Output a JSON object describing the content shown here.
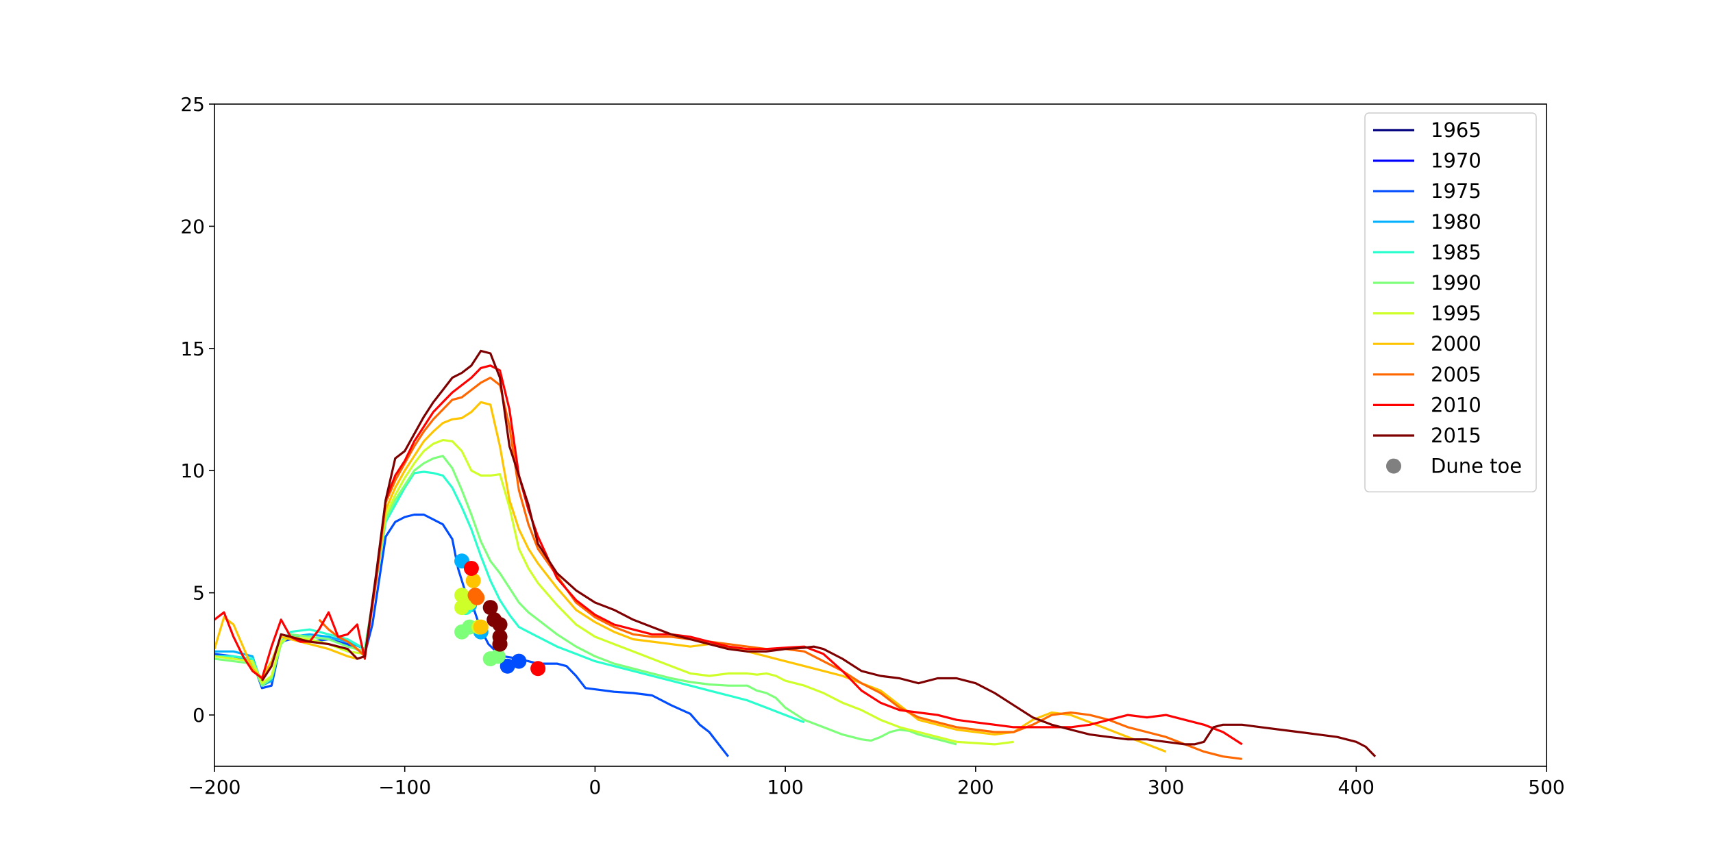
{
  "chart_data": {
    "type": "line",
    "title": "",
    "xlabel": "",
    "ylabel": "",
    "xlim": [
      -200,
      500
    ],
    "ylim": [
      -2.1,
      25
    ],
    "xticks": [
      -200,
      -100,
      0,
      100,
      200,
      300,
      400,
      500
    ],
    "yticks": [
      0,
      5,
      10,
      15,
      20,
      25
    ],
    "grid": false,
    "legend_position": "top-right",
    "legend_marker_label": "Dune toe",
    "legend_marker_color": "#808080",
    "series": [
      {
        "name": "1965",
        "color": "#00007f",
        "x": [],
        "y": []
      },
      {
        "name": "1970",
        "color": "#0000ff",
        "x": [],
        "y": []
      },
      {
        "name": "1975",
        "color": "#004cff",
        "x": [
          -200,
          -190,
          -180,
          -175,
          -170,
          -165,
          -160,
          -150,
          -140,
          -130,
          -121,
          -117,
          -110,
          -105,
          -100,
          -95,
          -90,
          -85,
          -80,
          -75,
          -72,
          -68,
          -64,
          -60,
          -56,
          -52,
          -48,
          -44,
          -40,
          -35,
          -30,
          -20,
          -15,
          -10,
          -5,
          0,
          10,
          20,
          30,
          40,
          50,
          55,
          60,
          65,
          70
        ],
        "y": [
          2.5,
          2.4,
          2.2,
          1.1,
          1.2,
          3.0,
          3.1,
          3.0,
          3.1,
          2.9,
          2.5,
          3.7,
          7.3,
          7.9,
          8.1,
          8.2,
          8.2,
          8.0,
          7.8,
          7.2,
          6.0,
          5.0,
          4.4,
          3.5,
          2.9,
          2.6,
          2.4,
          2.35,
          2.3,
          2.2,
          2.1,
          2.1,
          2.0,
          1.6,
          1.1,
          1.05,
          0.95,
          0.9,
          0.8,
          0.4,
          0.05,
          -0.4,
          -0.7,
          -1.2,
          -1.7
        ],
        "toe": [
          [
            -46,
            2.0
          ],
          [
            -40,
            2.2
          ]
        ]
      },
      {
        "name": "1980",
        "color": "#00b0ff",
        "x": [
          -200,
          -190,
          -180,
          -175,
          -170,
          -165,
          -160,
          -150,
          -140,
          -130,
          -121
        ],
        "y": [
          2.6,
          2.6,
          2.4,
          1.2,
          1.4,
          3.0,
          3.2,
          3.3,
          3.2,
          3.0,
          2.7
        ],
        "toe": [
          [
            -70,
            6.3
          ],
          [
            -60,
            3.4
          ],
          [
            -66,
            4.5
          ]
        ]
      },
      {
        "name": "1985",
        "color": "#29ffce",
        "x": [
          -200,
          -190,
          -180,
          -175,
          -170,
          -165,
          -160,
          -150,
          -140,
          -130,
          -121,
          -115,
          -110,
          -105,
          -100,
          -95,
          -90,
          -85,
          -80,
          -75,
          -70,
          -65,
          -60,
          -55,
          -50,
          -45,
          -40,
          -30,
          -20,
          -10,
          0,
          10,
          20,
          30,
          40,
          50,
          60,
          70,
          80,
          90,
          100,
          110
        ],
        "y": [
          2.4,
          2.4,
          2.3,
          1.3,
          1.5,
          3.0,
          3.4,
          3.5,
          3.3,
          3.1,
          2.7,
          5.5,
          7.9,
          8.6,
          9.3,
          9.9,
          9.95,
          9.9,
          9.8,
          9.3,
          8.5,
          7.6,
          6.5,
          5.5,
          4.7,
          4.1,
          3.6,
          3.2,
          2.8,
          2.5,
          2.2,
          2.0,
          1.8,
          1.6,
          1.4,
          1.2,
          1.0,
          0.8,
          0.6,
          0.3,
          0.0,
          -0.3
        ],
        "toe": [
          [
            -68,
            4.4
          ]
        ]
      },
      {
        "name": "1990",
        "color": "#7dff7a",
        "x": [
          -200,
          -190,
          -180,
          -175,
          -170,
          -165,
          -160,
          -150,
          -140,
          -130,
          -121,
          -115,
          -110,
          -105,
          -100,
          -95,
          -90,
          -85,
          -80,
          -75,
          -70,
          -65,
          -60,
          -55,
          -50,
          -45,
          -40,
          -35,
          -30,
          -20,
          -10,
          0,
          10,
          20,
          30,
          40,
          50,
          60,
          70,
          80,
          85,
          90,
          95,
          100,
          110,
          120,
          130,
          140,
          145,
          150,
          155,
          160,
          165,
          170,
          180,
          190
        ],
        "y": [
          2.3,
          2.2,
          2.1,
          1.2,
          1.5,
          2.9,
          3.3,
          3.2,
          3.1,
          2.8,
          2.6,
          5.6,
          8.0,
          8.8,
          9.4,
          10.0,
          10.3,
          10.5,
          10.6,
          10.1,
          9.2,
          8.2,
          7.1,
          6.3,
          5.8,
          5.2,
          4.6,
          4.2,
          3.9,
          3.3,
          2.8,
          2.4,
          2.1,
          1.9,
          1.7,
          1.5,
          1.35,
          1.25,
          1.2,
          1.2,
          1.0,
          0.9,
          0.7,
          0.3,
          -0.2,
          -0.5,
          -0.8,
          -1.0,
          -1.05,
          -0.9,
          -0.7,
          -0.6,
          -0.65,
          -0.8,
          -1.0,
          -1.2
        ],
        "toe": [
          [
            -70,
            3.4
          ],
          [
            -66,
            3.6
          ],
          [
            -55,
            2.3
          ],
          [
            -51,
            2.4
          ]
        ]
      },
      {
        "name": "1995",
        "color": "#ceff29",
        "x": [
          -200,
          -190,
          -180,
          -175,
          -170,
          -165,
          -160,
          -150,
          -140,
          -130,
          -121,
          -115,
          -110,
          -105,
          -100,
          -95,
          -90,
          -85,
          -80,
          -75,
          -70,
          -65,
          -60,
          -55,
          -50,
          -45,
          -40,
          -35,
          -30,
          -20,
          -10,
          0,
          10,
          20,
          30,
          40,
          50,
          60,
          70,
          80,
          85,
          90,
          95,
          100,
          110,
          120,
          130,
          140,
          150,
          160,
          170,
          180,
          190,
          200,
          210,
          220
        ],
        "y": [
          2.4,
          2.3,
          2.2,
          1.3,
          1.6,
          3.0,
          3.2,
          3.1,
          2.9,
          2.6,
          2.5,
          5.6,
          8.2,
          9.0,
          9.7,
          10.3,
          10.8,
          11.1,
          11.25,
          11.2,
          10.8,
          10.0,
          9.8,
          9.8,
          9.85,
          8.5,
          6.8,
          6.0,
          5.4,
          4.5,
          3.7,
          3.2,
          2.9,
          2.6,
          2.3,
          2.0,
          1.7,
          1.6,
          1.7,
          1.7,
          1.65,
          1.7,
          1.6,
          1.4,
          1.2,
          0.9,
          0.5,
          0.2,
          -0.2,
          -0.5,
          -0.7,
          -0.9,
          -1.1,
          -1.15,
          -1.2,
          -1.1
        ],
        "toe": [
          [
            -70,
            4.9
          ],
          [
            -66,
            4.6
          ],
          [
            -61,
            3.6
          ],
          [
            -70,
            4.4
          ]
        ]
      },
      {
        "name": "2000",
        "color": "#ffc400",
        "x": [
          -200,
          -195,
          -190,
          -185,
          -180,
          -175,
          -170,
          -165,
          -160,
          -150,
          -140,
          -130,
          -125,
          -121,
          -115,
          -110,
          -105,
          -100,
          -95,
          -90,
          -85,
          -80,
          -75,
          -70,
          -65,
          -60,
          -55,
          -50,
          -45,
          -40,
          -35,
          -30,
          -20,
          -10,
          0,
          10,
          20,
          30,
          40,
          50,
          60,
          70,
          80,
          90,
          100,
          110,
          120,
          130,
          140,
          150,
          160,
          170,
          180,
          190,
          200,
          210,
          220,
          230,
          240,
          250,
          260,
          270,
          280,
          290,
          300
        ],
        "y": [
          2.7,
          4.0,
          3.7,
          2.8,
          1.9,
          1.5,
          2.2,
          3.2,
          3.1,
          2.9,
          2.7,
          2.4,
          2.3,
          2.4,
          5.5,
          8.4,
          9.3,
          10.0,
          10.6,
          11.2,
          11.6,
          11.95,
          12.1,
          12.15,
          12.4,
          12.8,
          12.7,
          11.0,
          8.8,
          7.6,
          6.8,
          6.2,
          5.2,
          4.3,
          3.8,
          3.4,
          3.1,
          3.0,
          2.9,
          2.8,
          2.9,
          2.8,
          2.6,
          2.4,
          2.2,
          2.0,
          1.8,
          1.6,
          1.3,
          1.0,
          0.4,
          -0.2,
          -0.4,
          -0.6,
          -0.7,
          -0.8,
          -0.7,
          -0.2,
          0.1,
          0.0,
          -0.3,
          -0.6,
          -0.9,
          -1.2,
          -1.5
        ],
        "toe": [
          [
            -64,
            5.5
          ],
          [
            -60,
            3.6
          ]
        ]
      },
      {
        "name": "2005",
        "color": "#ff6800",
        "x": [
          -145,
          -140,
          -135,
          -130,
          -125,
          -121,
          -115,
          -110,
          -105,
          -100,
          -95,
          -90,
          -85,
          -80,
          -75,
          -70,
          -65,
          -60,
          -55,
          -50,
          -45,
          -40,
          -35,
          -30,
          -20,
          -10,
          0,
          10,
          20,
          30,
          40,
          50,
          60,
          70,
          80,
          90,
          100,
          110,
          120,
          130,
          140,
          150,
          160,
          170,
          180,
          190,
          200,
          210,
          220,
          230,
          240,
          250,
          260,
          270,
          280,
          290,
          300,
          310,
          320,
          330,
          340
        ],
        "y": [
          3.9,
          3.5,
          3.2,
          3.0,
          2.7,
          2.4,
          5.5,
          8.7,
          9.6,
          10.3,
          11.0,
          11.6,
          12.1,
          12.5,
          12.9,
          13.0,
          13.3,
          13.6,
          13.8,
          13.5,
          11.8,
          9.2,
          7.8,
          6.8,
          5.7,
          4.6,
          4.0,
          3.6,
          3.3,
          3.2,
          3.2,
          3.1,
          3.0,
          2.9,
          2.8,
          2.7,
          2.7,
          2.6,
          2.2,
          1.8,
          1.3,
          0.9,
          0.3,
          -0.1,
          -0.3,
          -0.5,
          -0.6,
          -0.7,
          -0.7,
          -0.4,
          0.0,
          0.1,
          0.0,
          -0.2,
          -0.5,
          -0.7,
          -0.9,
          -1.2,
          -1.5,
          -1.7,
          -1.8
        ],
        "toe": [
          [
            -63,
            4.9
          ],
          [
            -62,
            4.8
          ]
        ]
      },
      {
        "name": "2010",
        "color": "#ff0000",
        "x": [
          -200,
          -195,
          -190,
          -185,
          -180,
          -175,
          -170,
          -165,
          -160,
          -155,
          -150,
          -145,
          -140,
          -135,
          -130,
          -125,
          -121,
          -115,
          -110,
          -105,
          -100,
          -95,
          -90,
          -85,
          -80,
          -75,
          -70,
          -65,
          -60,
          -55,
          -50,
          -45,
          -40,
          -35,
          -30,
          -20,
          -10,
          0,
          10,
          20,
          30,
          40,
          50,
          60,
          70,
          80,
          90,
          100,
          110,
          120,
          130,
          140,
          150,
          160,
          170,
          180,
          190,
          200,
          210,
          220,
          230,
          240,
          250,
          260,
          270,
          280,
          290,
          300,
          310,
          320,
          330,
          340
        ],
        "y": [
          3.9,
          4.2,
          3.2,
          2.4,
          1.8,
          1.5,
          2.8,
          3.9,
          3.2,
          3.0,
          3.0,
          3.5,
          4.2,
          3.2,
          3.3,
          3.7,
          2.3,
          5.7,
          8.8,
          9.8,
          10.4,
          11.2,
          11.8,
          12.4,
          12.8,
          13.2,
          13.5,
          13.8,
          14.2,
          14.3,
          14.1,
          12.5,
          9.8,
          8.4,
          7.3,
          5.6,
          4.7,
          4.1,
          3.7,
          3.5,
          3.3,
          3.3,
          3.2,
          3.0,
          2.8,
          2.7,
          2.7,
          2.75,
          2.8,
          2.5,
          1.8,
          1.0,
          0.5,
          0.2,
          0.1,
          0.0,
          -0.2,
          -0.3,
          -0.4,
          -0.5,
          -0.5,
          -0.5,
          -0.5,
          -0.4,
          -0.2,
          0.0,
          -0.1,
          0.0,
          -0.2,
          -0.4,
          -0.7,
          -1.2
        ],
        "toe": [
          [
            -65,
            6.0
          ],
          [
            -30,
            1.9
          ],
          [
            -50,
            2.9
          ]
        ]
      },
      {
        "name": "2015",
        "color": "#7f0000",
        "x": [
          -175,
          -170,
          -165,
          -160,
          -150,
          -140,
          -130,
          -125,
          -121,
          -115,
          -110,
          -105,
          -100,
          -95,
          -90,
          -85,
          -80,
          -75,
          -70,
          -65,
          -60,
          -55,
          -50,
          -45,
          -40,
          -35,
          -30,
          -25,
          -20,
          -10,
          0,
          10,
          20,
          30,
          40,
          50,
          60,
          70,
          80,
          90,
          100,
          110,
          115,
          120,
          130,
          140,
          150,
          160,
          170,
          180,
          190,
          200,
          210,
          220,
          230,
          240,
          250,
          260,
          270,
          280,
          290,
          300,
          310,
          315,
          320,
          325,
          330,
          340,
          350,
          360,
          370,
          380,
          390,
          400,
          405,
          410
        ],
        "y": [
          1.4,
          2.0,
          3.3,
          3.2,
          3.0,
          2.9,
          2.7,
          2.3,
          2.4,
          5.8,
          8.8,
          10.5,
          10.8,
          11.5,
          12.2,
          12.8,
          13.3,
          13.8,
          14.0,
          14.3,
          14.9,
          14.8,
          13.8,
          11.0,
          9.8,
          8.6,
          7.0,
          6.4,
          5.8,
          5.1,
          4.6,
          4.3,
          3.9,
          3.6,
          3.3,
          3.1,
          2.9,
          2.7,
          2.6,
          2.6,
          2.7,
          2.75,
          2.8,
          2.7,
          2.3,
          1.8,
          1.6,
          1.5,
          1.3,
          1.5,
          1.5,
          1.3,
          0.9,
          0.4,
          -0.1,
          -0.4,
          -0.6,
          -0.8,
          -0.9,
          -1.0,
          -1.0,
          -1.1,
          -1.2,
          -1.2,
          -1.1,
          -0.5,
          -0.4,
          -0.4,
          -0.5,
          -0.6,
          -0.7,
          -0.8,
          -0.9,
          -1.1,
          -1.3,
          -1.7
        ],
        "toe": [
          [
            -55,
            4.4
          ],
          [
            -53,
            3.9
          ],
          [
            -50,
            3.7
          ],
          [
            -50,
            3.2
          ],
          [
            -50,
            2.9
          ]
        ]
      }
    ]
  }
}
